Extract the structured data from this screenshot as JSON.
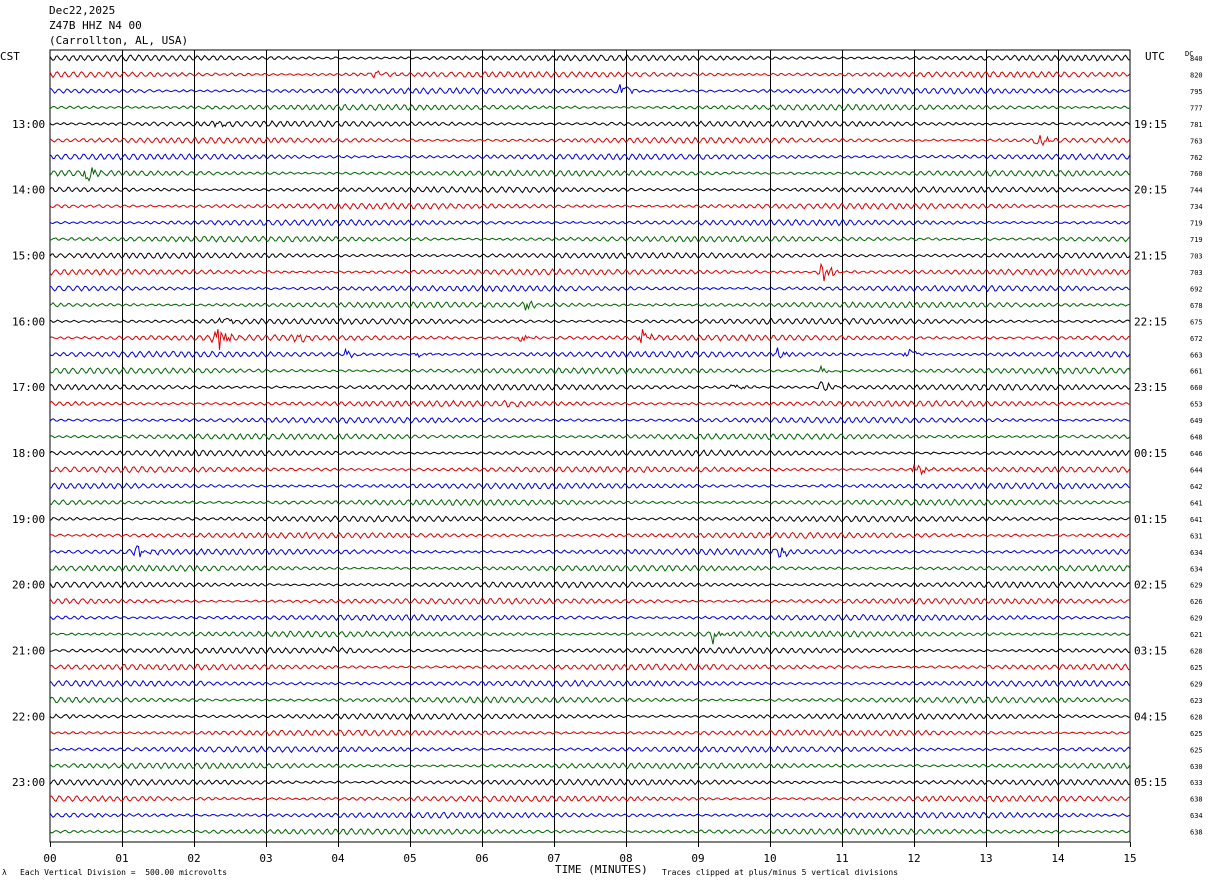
{
  "header": {
    "date": "Dec22,2025",
    "station": "Z47B HHZ N4 00",
    "location": "(Carrollton, AL, USA)"
  },
  "left_zone": "CST",
  "right_zone": "UTC",
  "dc_label": "DC",
  "footer": {
    "scale_note": "Each Vertical Division =  500.00 microvolts",
    "x_title": "TIME (MINUTES)",
    "clip_note": "Traces clipped at plus/minus 5 vertical divisions",
    "corner_mark": "λ"
  },
  "colors": {
    "black": "#000000",
    "red": "#dd0000",
    "blue": "#0000dd",
    "green": "#006600"
  },
  "chart_data": {
    "type": "line",
    "xlabel": "TIME (MINUTES)",
    "x_range": [
      0,
      15
    ],
    "x_ticks": [
      "00",
      "01",
      "02",
      "03",
      "04",
      "05",
      "06",
      "07",
      "08",
      "09",
      "10",
      "11",
      "12",
      "13",
      "14",
      "15"
    ],
    "trace_color_cycle": [
      "black",
      "red",
      "blue",
      "green"
    ],
    "trace_count": 48,
    "left_time_labels": [
      {
        "trace": 4,
        "label": "13:00"
      },
      {
        "trace": 8,
        "label": "14:00"
      },
      {
        "trace": 12,
        "label": "15:00"
      },
      {
        "trace": 16,
        "label": "16:00"
      },
      {
        "trace": 20,
        "label": "17:00"
      },
      {
        "trace": 24,
        "label": "18:00"
      },
      {
        "trace": 28,
        "label": "19:00"
      },
      {
        "trace": 32,
        "label": "20:00"
      },
      {
        "trace": 36,
        "label": "21:00"
      },
      {
        "trace": 40,
        "label": "22:00"
      },
      {
        "trace": 44,
        "label": "23:00"
      }
    ],
    "right_time_labels": [
      {
        "trace": 4,
        "label": "19:15"
      },
      {
        "trace": 8,
        "label": "20:15"
      },
      {
        "trace": 12,
        "label": "21:15"
      },
      {
        "trace": 16,
        "label": "22:15"
      },
      {
        "trace": 20,
        "label": "23:15"
      },
      {
        "trace": 24,
        "label": "00:15"
      },
      {
        "trace": 28,
        "label": "01:15"
      },
      {
        "trace": 32,
        "label": "02:15"
      },
      {
        "trace": 36,
        "label": "03:15"
      },
      {
        "trace": 40,
        "label": "04:15"
      },
      {
        "trace": 44,
        "label": "05:15"
      }
    ],
    "dc_offsets": [
      "840",
      "820",
      "795",
      "777",
      "781",
      "763",
      "762",
      "760",
      "744",
      "734",
      "719",
      "719",
      "703",
      "703",
      "692",
      "678",
      "675",
      "672",
      "663",
      "661",
      "660",
      "653",
      "649",
      "648",
      "646",
      "644",
      "642",
      "641",
      "641",
      "631",
      "634",
      "634",
      "629",
      "626",
      "629",
      "621",
      "628",
      "625",
      "629",
      "623",
      "628",
      "625",
      "625",
      "630",
      "633",
      "638",
      "634",
      "638"
    ],
    "events": [
      {
        "trace": 1,
        "minute": 4.5,
        "amp": 0.7
      },
      {
        "trace": 2,
        "minute": 7.9,
        "amp": 1.3
      },
      {
        "trace": 4,
        "minute": 2.3,
        "amp": 0.7
      },
      {
        "trace": 5,
        "minute": 13.7,
        "amp": 1.3
      },
      {
        "trace": 7,
        "minute": 0.5,
        "amp": 1.8
      },
      {
        "trace": 13,
        "minute": 10.7,
        "amp": 2.4
      },
      {
        "trace": 15,
        "minute": 6.6,
        "amp": 0.7
      },
      {
        "trace": 16,
        "minute": 2.4,
        "amp": 1.0
      },
      {
        "trace": 17,
        "minute": 2.3,
        "amp": 2.6
      },
      {
        "trace": 17,
        "minute": 3.4,
        "amp": 0.9
      },
      {
        "trace": 17,
        "minute": 6.5,
        "amp": 1.2
      },
      {
        "trace": 17,
        "minute": 8.2,
        "amp": 1.5
      },
      {
        "trace": 18,
        "minute": 4.1,
        "amp": 0.9
      },
      {
        "trace": 18,
        "minute": 5.1,
        "amp": 0.7
      },
      {
        "trace": 18,
        "minute": 10.1,
        "amp": 1.0
      },
      {
        "trace": 18,
        "minute": 11.9,
        "amp": 1.2
      },
      {
        "trace": 19,
        "minute": 10.7,
        "amp": 0.9
      },
      {
        "trace": 20,
        "minute": 9.5,
        "amp": 0.7
      },
      {
        "trace": 20,
        "minute": 10.7,
        "amp": 1.0
      },
      {
        "trace": 21,
        "minute": 6.3,
        "amp": 0.7
      },
      {
        "trace": 25,
        "minute": 12.0,
        "amp": 1.5
      },
      {
        "trace": 30,
        "minute": 1.2,
        "amp": 1.2
      },
      {
        "trace": 30,
        "minute": 10.1,
        "amp": 1.2
      },
      {
        "trace": 35,
        "minute": 9.2,
        "amp": 1.6
      },
      {
        "trace": 36,
        "minute": 3.9,
        "amp": 0.8
      }
    ]
  }
}
